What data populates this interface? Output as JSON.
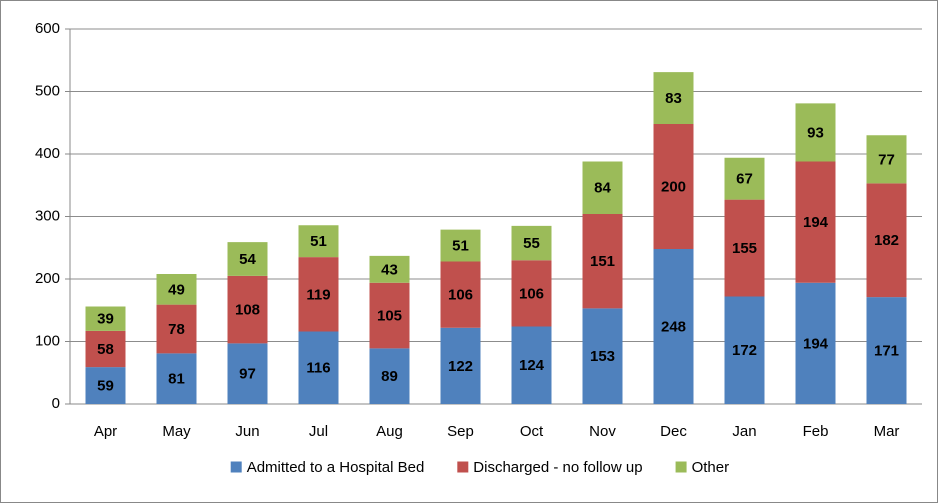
{
  "chart_data": {
    "type": "stacked_bar",
    "categories": [
      "Apr",
      "May",
      "Jun",
      "Jul",
      "Aug",
      "Sep",
      "Oct",
      "Nov",
      "Dec",
      "Jan",
      "Feb",
      "Mar"
    ],
    "series": [
      {
        "name": "Admitted to a Hospital Bed",
        "color": "#4f81bd",
        "values": [
          59,
          81,
          97,
          116,
          89,
          122,
          124,
          153,
          248,
          172,
          194,
          171
        ]
      },
      {
        "name": "Discharged - no follow up",
        "color": "#c0504d",
        "values": [
          58,
          78,
          108,
          119,
          105,
          106,
          106,
          151,
          200,
          155,
          194,
          182
        ]
      },
      {
        "name": "Other",
        "color": "#9bbb59",
        "values": [
          39,
          49,
          54,
          51,
          43,
          51,
          55,
          84,
          83,
          67,
          93,
          77
        ]
      }
    ],
    "ylim": [
      0,
      600
    ],
    "yticks": [
      0,
      100,
      200,
      300,
      400,
      500,
      600
    ],
    "grid": true,
    "legend": "bottom"
  }
}
